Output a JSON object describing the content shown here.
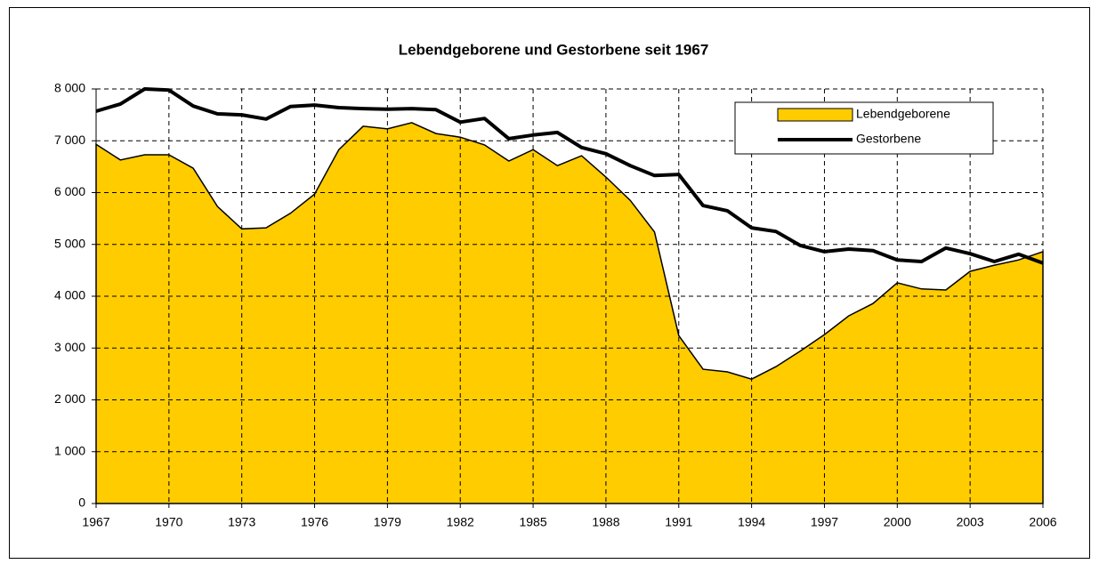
{
  "chart_data": {
    "type": "area-line",
    "title": "Lebendgeborene und Gestorbene seit 1967",
    "x": [
      1967,
      1968,
      1969,
      1970,
      1971,
      1972,
      1973,
      1974,
      1975,
      1976,
      1977,
      1978,
      1979,
      1980,
      1981,
      1982,
      1983,
      1984,
      1985,
      1986,
      1987,
      1988,
      1989,
      1990,
      1991,
      1992,
      1993,
      1994,
      1995,
      1996,
      1997,
      1998,
      1999,
      2000,
      2001,
      2002,
      2003,
      2004,
      2005,
      2006
    ],
    "series": [
      {
        "name": "Lebendgeborene",
        "type": "area",
        "color": "#ffcc00",
        "values": [
          6930,
          6630,
          6730,
          6730,
          6470,
          5730,
          5300,
          5320,
          5600,
          5970,
          6830,
          7280,
          7230,
          7350,
          7140,
          7070,
          6920,
          6610,
          6830,
          6520,
          6710,
          6300,
          5850,
          5240,
          3240,
          2590,
          2540,
          2400,
          2640,
          2940,
          3260,
          3620,
          3860,
          4260,
          4140,
          4120,
          4480,
          4600,
          4700,
          4860
        ]
      },
      {
        "name": "Gestorbene",
        "type": "line",
        "color": "#000000",
        "values": [
          7570,
          7710,
          8000,
          7980,
          7670,
          7520,
          7500,
          7420,
          7660,
          7690,
          7640,
          7620,
          7610,
          7620,
          7600,
          7360,
          7430,
          7040,
          7110,
          7160,
          6870,
          6750,
          6520,
          6330,
          6350,
          5750,
          5650,
          5320,
          5250,
          4980,
          4860,
          4910,
          4880,
          4700,
          4670,
          4930,
          4820,
          4670,
          4810,
          4640
        ]
      }
    ],
    "xlim": [
      1967,
      2006
    ],
    "xticks": [
      1967,
      1970,
      1973,
      1976,
      1979,
      1982,
      1985,
      1988,
      1991,
      1994,
      1997,
      2000,
      2003,
      2006
    ],
    "ylim": [
      0,
      8000
    ],
    "yticks": [
      0,
      {
        "value": 1000,
        "label": "1 000"
      },
      {
        "value": 2000,
        "label": "2 000"
      },
      {
        "value": 3000,
        "label": "3 000"
      },
      {
        "value": 4000,
        "label": "4 000"
      },
      {
        "value": 5000,
        "label": "5 000"
      },
      {
        "value": 6000,
        "label": "6 000"
      },
      {
        "value": 7000,
        "label": "7 000"
      },
      {
        "value": 8000,
        "label": "8 000"
      }
    ],
    "grid": true,
    "legend": "top-right"
  }
}
